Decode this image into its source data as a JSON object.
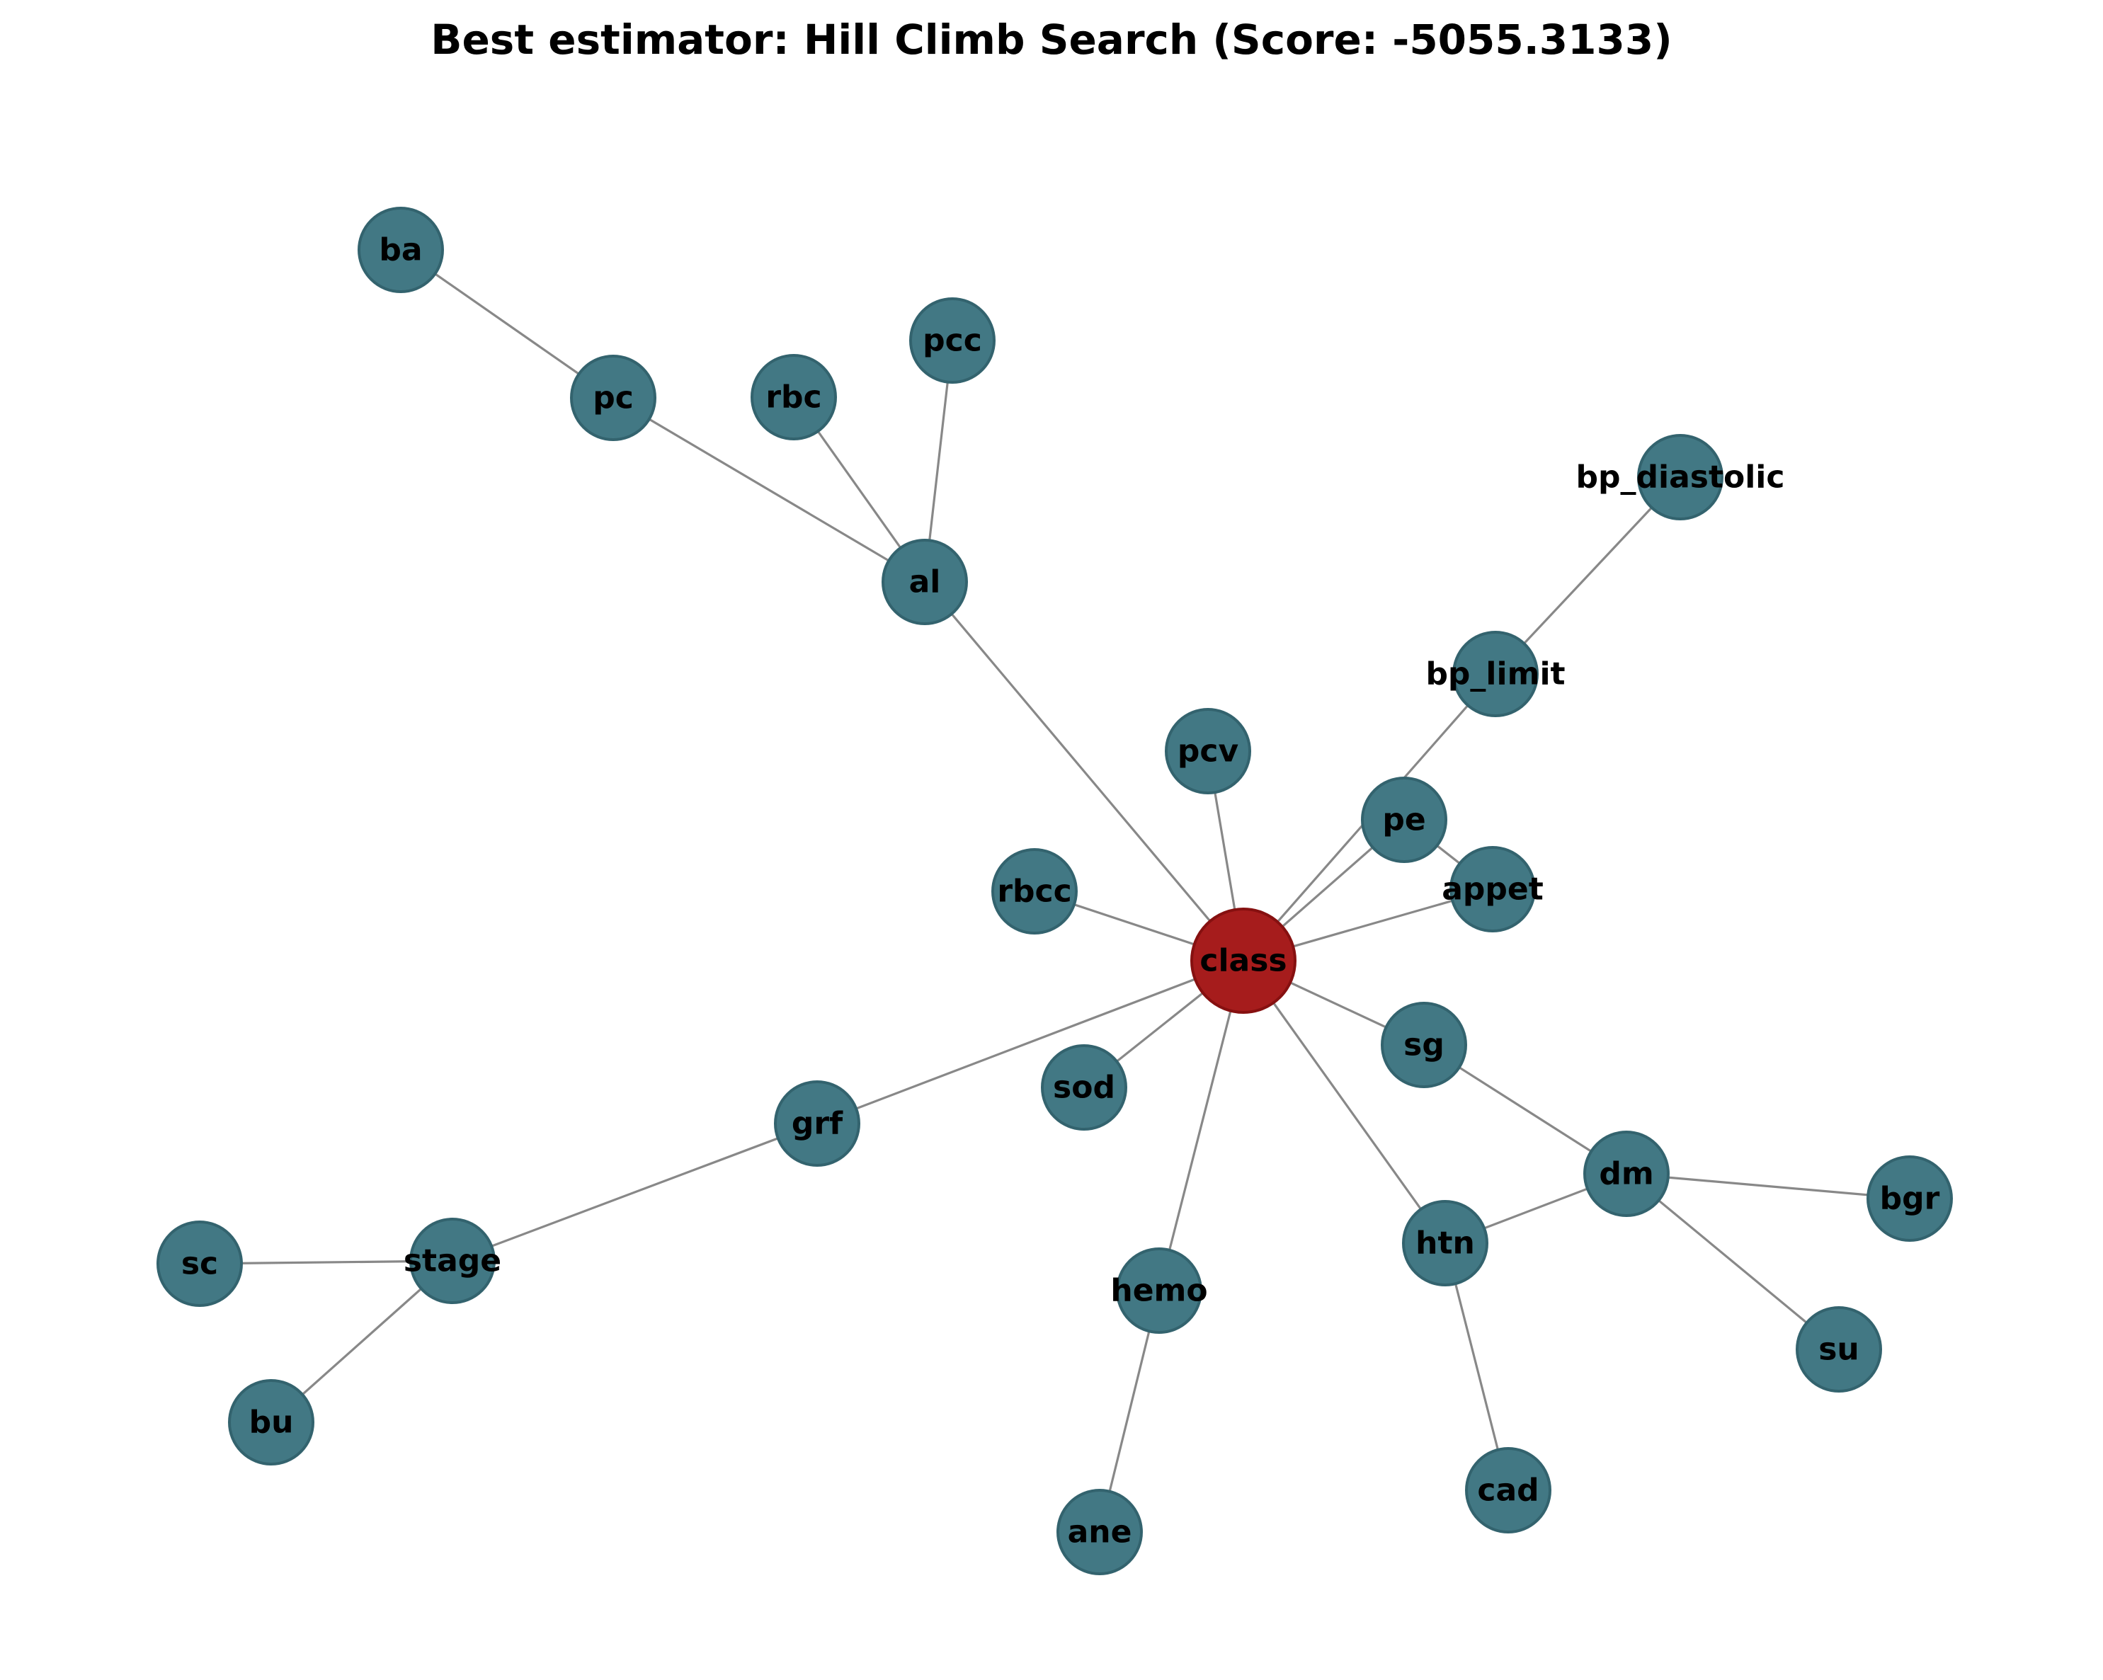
{
  "title": "Best estimator: Hill Climb Search (Score: -5055.3133)",
  "colors": {
    "node_fill": "#427884",
    "node_stroke": "#33636e",
    "highlight_fill": "#a61c1c",
    "highlight_stroke": "#861010",
    "edge": "#888888"
  },
  "nodes": [
    {
      "id": "class",
      "label": "class",
      "highlight": true
    },
    {
      "id": "ba",
      "label": "ba"
    },
    {
      "id": "pc",
      "label": "pc"
    },
    {
      "id": "rbc",
      "label": "rbc"
    },
    {
      "id": "pcc",
      "label": "pcc"
    },
    {
      "id": "al",
      "label": "al"
    },
    {
      "id": "bp_diastolic",
      "label": "bp_diastolic"
    },
    {
      "id": "bp_limit",
      "label": "bp_limit"
    },
    {
      "id": "pcv",
      "label": "pcv"
    },
    {
      "id": "pe",
      "label": "pe"
    },
    {
      "id": "appet",
      "label": "appet"
    },
    {
      "id": "rbcc",
      "label": "rbcc"
    },
    {
      "id": "sg",
      "label": "sg"
    },
    {
      "id": "sod",
      "label": "sod"
    },
    {
      "id": "grf",
      "label": "grf"
    },
    {
      "id": "dm",
      "label": "dm"
    },
    {
      "id": "bgr",
      "label": "bgr"
    },
    {
      "id": "sc",
      "label": "sc"
    },
    {
      "id": "stage",
      "label": "stage"
    },
    {
      "id": "htn",
      "label": "htn"
    },
    {
      "id": "hemo",
      "label": "hemo"
    },
    {
      "id": "su",
      "label": "su"
    },
    {
      "id": "bu",
      "label": "bu"
    },
    {
      "id": "cad",
      "label": "cad"
    },
    {
      "id": "ane",
      "label": "ane"
    }
  ],
  "edges": [
    [
      "ba",
      "pc"
    ],
    [
      "pc",
      "al"
    ],
    [
      "rbc",
      "al"
    ],
    [
      "pcc",
      "al"
    ],
    [
      "al",
      "class"
    ],
    [
      "bp_diastolic",
      "bp_limit"
    ],
    [
      "bp_limit",
      "class"
    ],
    [
      "pcv",
      "class"
    ],
    [
      "pe",
      "class"
    ],
    [
      "pe",
      "appet"
    ],
    [
      "appet",
      "class"
    ],
    [
      "rbcc",
      "class"
    ],
    [
      "sg",
      "class"
    ],
    [
      "sg",
      "dm"
    ],
    [
      "sod",
      "class"
    ],
    [
      "grf",
      "class"
    ],
    [
      "grf",
      "stage"
    ],
    [
      "stage",
      "sc"
    ],
    [
      "stage",
      "bu"
    ],
    [
      "class",
      "htn"
    ],
    [
      "htn",
      "dm"
    ],
    [
      "htn",
      "cad"
    ],
    [
      "dm",
      "bgr"
    ],
    [
      "dm",
      "su"
    ],
    [
      "class",
      "hemo"
    ],
    [
      "hemo",
      "ane"
    ]
  ]
}
